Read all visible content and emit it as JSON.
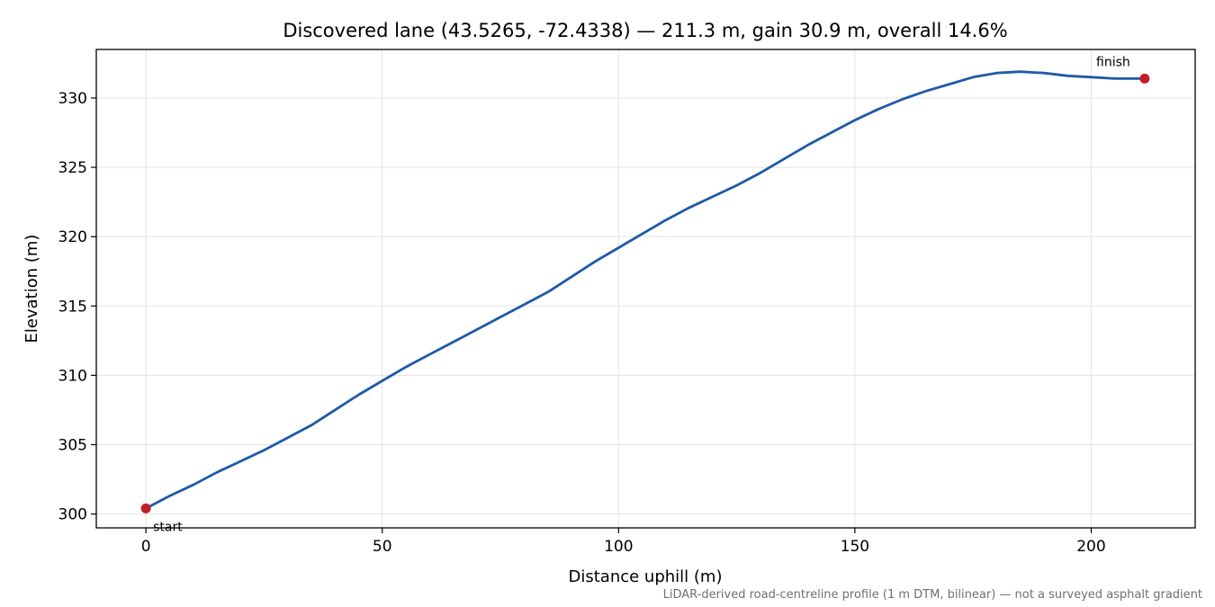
{
  "chart_data": {
    "type": "line",
    "title": "Discovered lane (43.5265, -72.4338) — 211.3 m, gain 30.9 m, overall 14.6%",
    "xlabel": "Distance uphill (m)",
    "ylabel": "Elevation (m)",
    "xlim": [
      -10.5,
      222
    ],
    "ylim": [
      299,
      333.5
    ],
    "x_ticks": [
      0,
      50,
      100,
      150,
      200
    ],
    "y_ticks": [
      300,
      305,
      310,
      315,
      320,
      325,
      330
    ],
    "grid": true,
    "line_color": "#1f5aa6",
    "marker_color": "#c41e2a",
    "series": [
      {
        "x": [
          0,
          5,
          10,
          15,
          20,
          25,
          30,
          35,
          40,
          45,
          50,
          55,
          60,
          65,
          70,
          75,
          80,
          85,
          90,
          95,
          100,
          105,
          110,
          115,
          120,
          125,
          130,
          135,
          140,
          145,
          150,
          155,
          160,
          165,
          170,
          175,
          180,
          185,
          190,
          195,
          200,
          205,
          211.3
        ],
        "y": [
          300.4,
          301.3,
          302.1,
          303.0,
          303.8,
          304.6,
          305.5,
          306.4,
          307.5,
          308.6,
          309.6,
          310.6,
          311.5,
          312.4,
          313.3,
          314.2,
          315.1,
          316.0,
          317.1,
          318.2,
          319.2,
          320.2,
          321.2,
          322.1,
          322.9,
          323.7,
          324.6,
          325.6,
          326.6,
          327.5,
          328.4,
          329.2,
          329.9,
          330.5,
          331.0,
          331.5,
          331.8,
          331.9,
          331.8,
          331.6,
          331.5,
          331.4,
          331.4
        ]
      }
    ],
    "markers": [
      {
        "label": "start",
        "x": 0,
        "y": 300.4
      },
      {
        "label": "finish",
        "x": 211.3,
        "y": 331.4
      }
    ],
    "caption": "LiDAR-derived road-centreline profile (1 m DTM, bilinear) — not a surveyed asphalt gradient"
  }
}
